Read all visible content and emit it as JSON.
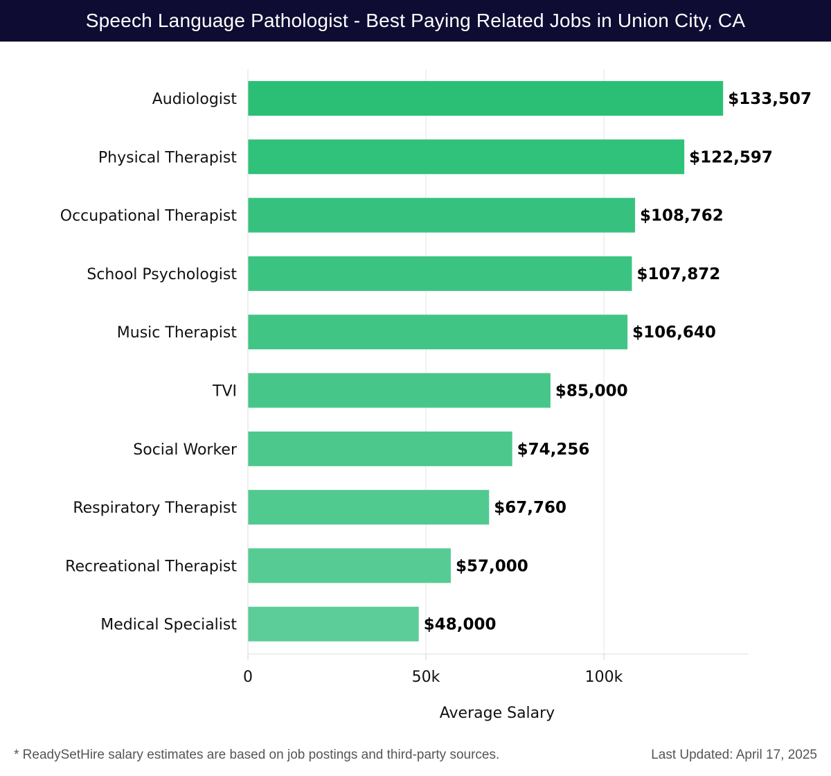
{
  "header": {
    "title": "Speech Language Pathologist - Best Paying Related Jobs in Union City, CA"
  },
  "chart_data": {
    "type": "bar",
    "orientation": "horizontal",
    "categories": [
      "Audiologist",
      "Physical Therapist",
      "Occupational Therapist",
      "School Psychologist",
      "Music Therapist",
      "TVI",
      "Social Worker",
      "Respiratory Therapist",
      "Recreational Therapist",
      "Medical Specialist"
    ],
    "values": [
      133507,
      122597,
      108762,
      107872,
      106640,
      85000,
      74256,
      67760,
      57000,
      48000
    ],
    "value_labels": [
      "$133,507",
      "$122,597",
      "$108,762",
      "$107,872",
      "$106,640",
      "$85,000",
      "$74,256",
      "$67,760",
      "$57,000",
      "$48,000"
    ],
    "xlabel": "Average Salary",
    "ylabel": "",
    "xlim": [
      0,
      140000
    ],
    "xticks": [
      0,
      50000,
      100000
    ],
    "xtick_labels": [
      "0",
      "50k",
      "100k"
    ],
    "grid": "vertical",
    "colors": {
      "bar_start": "#2bbf76",
      "bar_end": "#5ccd98",
      "title_bg": "#0e0c33"
    }
  },
  "footer": {
    "note": "* ReadySetHire salary estimates are based on job postings and third-party sources.",
    "updated": "Last Updated: April 17, 2025"
  }
}
